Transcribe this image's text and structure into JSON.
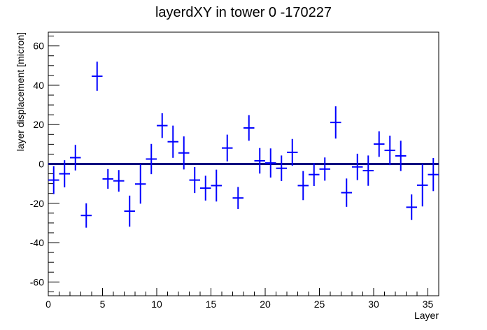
{
  "chart_data": {
    "type": "scatter",
    "title": "layerdXY in tower 0 -170227",
    "xlabel": "Layer",
    "ylabel": "layer displacement [micron]",
    "xlim": [
      0,
      36
    ],
    "ylim": [
      -67,
      67
    ],
    "x_ticks": [
      0,
      5,
      10,
      15,
      20,
      25,
      30,
      35
    ],
    "y_ticks": [
      -60,
      -40,
      -20,
      0,
      20,
      40,
      60
    ],
    "x_minor_step": 1,
    "y_minor_step": 5,
    "grid": false,
    "reference_line": {
      "y": 0,
      "color": "#000080"
    },
    "marker_color": "#0000ff",
    "series": [
      {
        "name": "layerdXY",
        "x": [
          0.5,
          1.5,
          2.5,
          3.5,
          4.5,
          5.5,
          6.5,
          7.5,
          8.5,
          9.5,
          10.5,
          11.5,
          12.5,
          13.5,
          14.5,
          15.5,
          16.5,
          17.5,
          18.5,
          19.5,
          20.5,
          21.5,
          22.5,
          23.5,
          24.5,
          25.5,
          26.5,
          27.5,
          28.5,
          29.5,
          30.5,
          31.5,
          32.5,
          33.5,
          34.5,
          35.5
        ],
        "y": [
          -8.2,
          -5.0,
          3.2,
          -26.2,
          44.6,
          -7.6,
          -8.6,
          -24.0,
          -10.2,
          2.5,
          19.5,
          11.3,
          5.6,
          -8.2,
          -12.3,
          -11.0,
          8.1,
          -17.3,
          18.3,
          1.6,
          0.5,
          -2.2,
          5.9,
          -11.0,
          -5.4,
          -2.6,
          21.1,
          -14.6,
          -1.5,
          -3.4,
          10.1,
          6.9,
          4.1,
          -22.0,
          -10.8,
          -5.4
        ],
        "yerr": [
          7.1,
          6.9,
          6.5,
          6.2,
          7.4,
          5.0,
          5.5,
          7.9,
          10.0,
          7.7,
          6.3,
          8.2,
          8.4,
          6.6,
          6.3,
          8.1,
          6.8,
          5.6,
          6.5,
          6.5,
          7.4,
          6.5,
          6.8,
          7.4,
          5.8,
          5.9,
          8.2,
          7.2,
          6.7,
          7.7,
          6.5,
          7.5,
          7.7,
          6.5,
          10.8,
          8.4
        ],
        "xerr": 0.5
      }
    ]
  }
}
